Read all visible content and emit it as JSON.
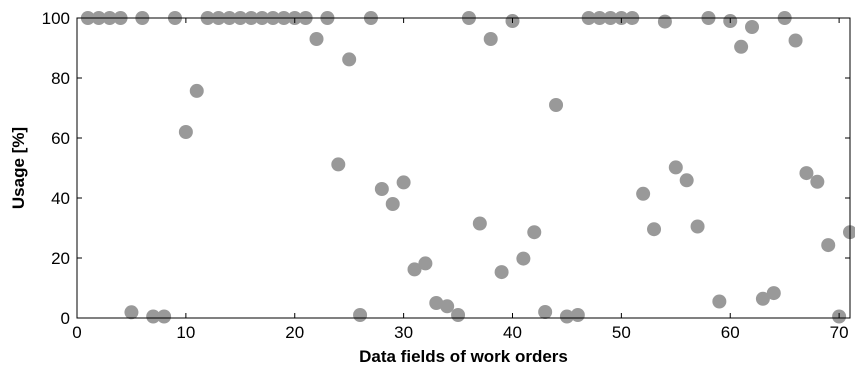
{
  "chart_data": {
    "type": "scatter",
    "title": "",
    "xlabel": "Data fields of work orders",
    "ylabel": "Usage [%]",
    "xlim": [
      0,
      71
    ],
    "ylim": [
      0,
      100
    ],
    "xticks": [
      0,
      10,
      20,
      30,
      40,
      50,
      60,
      70
    ],
    "yticks": [
      0,
      20,
      40,
      60,
      80,
      100
    ],
    "grid": false,
    "marker_color": "#999999",
    "series": [
      {
        "points": [
          [
            1,
            100
          ],
          [
            2,
            100
          ],
          [
            3,
            100
          ],
          [
            4,
            100
          ],
          [
            5,
            1.9
          ],
          [
            6,
            100
          ],
          [
            7,
            0.5
          ],
          [
            8,
            0.5
          ],
          [
            9,
            100
          ],
          [
            10,
            62
          ],
          [
            11,
            75.7
          ],
          [
            12,
            100
          ],
          [
            13,
            100
          ],
          [
            14,
            100
          ],
          [
            15,
            100
          ],
          [
            16,
            100
          ],
          [
            17,
            100
          ],
          [
            18,
            100
          ],
          [
            19,
            100
          ],
          [
            20,
            100
          ],
          [
            21,
            100
          ],
          [
            22,
            93
          ],
          [
            23,
            100
          ],
          [
            24,
            51.2
          ],
          [
            25,
            86.2
          ],
          [
            26,
            1
          ],
          [
            27,
            100
          ],
          [
            28,
            43
          ],
          [
            29,
            38
          ],
          [
            30,
            45.2
          ],
          [
            31,
            16.2
          ],
          [
            32,
            18.2
          ],
          [
            33,
            5
          ],
          [
            34,
            3.9
          ],
          [
            35,
            1
          ],
          [
            36,
            100
          ],
          [
            37,
            31.5
          ],
          [
            38,
            93
          ],
          [
            39,
            15.3
          ],
          [
            40,
            99
          ],
          [
            41,
            19.8
          ],
          [
            42,
            28.6
          ],
          [
            43,
            2
          ],
          [
            44,
            71
          ],
          [
            45,
            0.5
          ],
          [
            46,
            1
          ],
          [
            47,
            100
          ],
          [
            48,
            100
          ],
          [
            49,
            100
          ],
          [
            50,
            100
          ],
          [
            51,
            100
          ],
          [
            52,
            41.4
          ],
          [
            53,
            29.6
          ],
          [
            54,
            98.8
          ],
          [
            55,
            50.2
          ],
          [
            56,
            45.9
          ],
          [
            57,
            30.5
          ],
          [
            58,
            100
          ],
          [
            59,
            5.5
          ],
          [
            60,
            99
          ],
          [
            61,
            90.4
          ],
          [
            62,
            97
          ],
          [
            63,
            6.4
          ],
          [
            64,
            8.3
          ],
          [
            65,
            100
          ],
          [
            66,
            92.5
          ],
          [
            67,
            48.3
          ],
          [
            68,
            45.4
          ],
          [
            69,
            24.3
          ],
          [
            70,
            0.5
          ],
          [
            71,
            28.6
          ]
        ]
      }
    ]
  }
}
